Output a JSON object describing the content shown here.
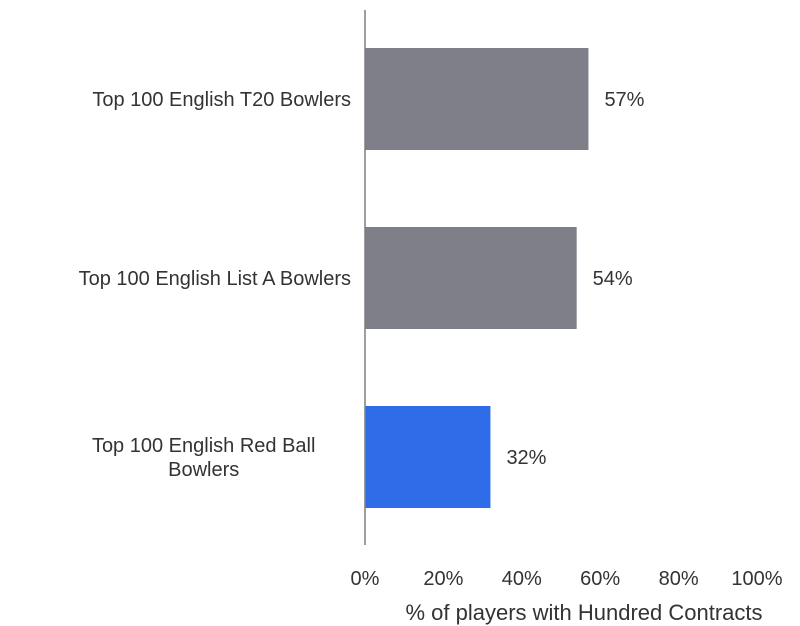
{
  "chart_data": {
    "type": "bar",
    "orientation": "horizontal",
    "categories": [
      [
        "Top 100 English T20 Bowlers"
      ],
      [
        "Top 100 English List A Bowlers"
      ],
      [
        "Top 100 English Red Ball",
        "Bowlers"
      ]
    ],
    "values": [
      57,
      54,
      32
    ],
    "value_labels": [
      "57%",
      "54%",
      "32%"
    ],
    "bar_colors": [
      "#7f7f8a",
      "#7f7f8a",
      "#2f6de8"
    ],
    "xlabel": "% of players with Hundred Contracts",
    "xlim": [
      0,
      100
    ],
    "xticks": [
      0,
      20,
      40,
      60,
      80,
      100
    ],
    "xtick_labels": [
      "0%",
      "20%",
      "40%",
      "60%",
      "80%",
      "100%"
    ],
    "grid": false,
    "legend": "none"
  }
}
